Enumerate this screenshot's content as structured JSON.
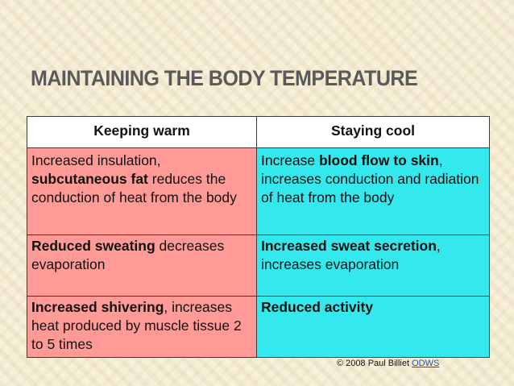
{
  "slide": {
    "title": "MAINTAINING THE BODY TEMPERATURE"
  },
  "table": {
    "headers": {
      "warm": "Keeping warm",
      "cool": "Staying cool"
    },
    "rows": [
      {
        "warm": {
          "pre": "Increased insulation, ",
          "bold": "subcutaneous fat",
          "post": " reduces the conduction of heat from the body"
        },
        "cool": {
          "pre": "Increase ",
          "bold": "blood flow to skin",
          "post": ", increases conduction and radiation of heat from the body"
        }
      },
      {
        "warm": {
          "bold": "Reduced sweating",
          "post": " decreases evaporation"
        },
        "cool": {
          "bold": "Increased sweat secretion",
          "post": ", increases evaporation"
        }
      },
      {
        "warm": {
          "bold": "Increased shivering",
          "post": ", increases heat produced by muscle tissue 2 to 5 times"
        },
        "cool": {
          "bold": "Reduced activity"
        }
      }
    ]
  },
  "credit": {
    "text": "© 2008 Paul Billiet ",
    "link": "ODWS"
  },
  "colors": {
    "warm_cell": "#ff9a96",
    "cool_cell": "#33e9ee",
    "header_cell": "#ffffff",
    "title_text": "#5a5a5a",
    "background": "#f6efd9"
  }
}
